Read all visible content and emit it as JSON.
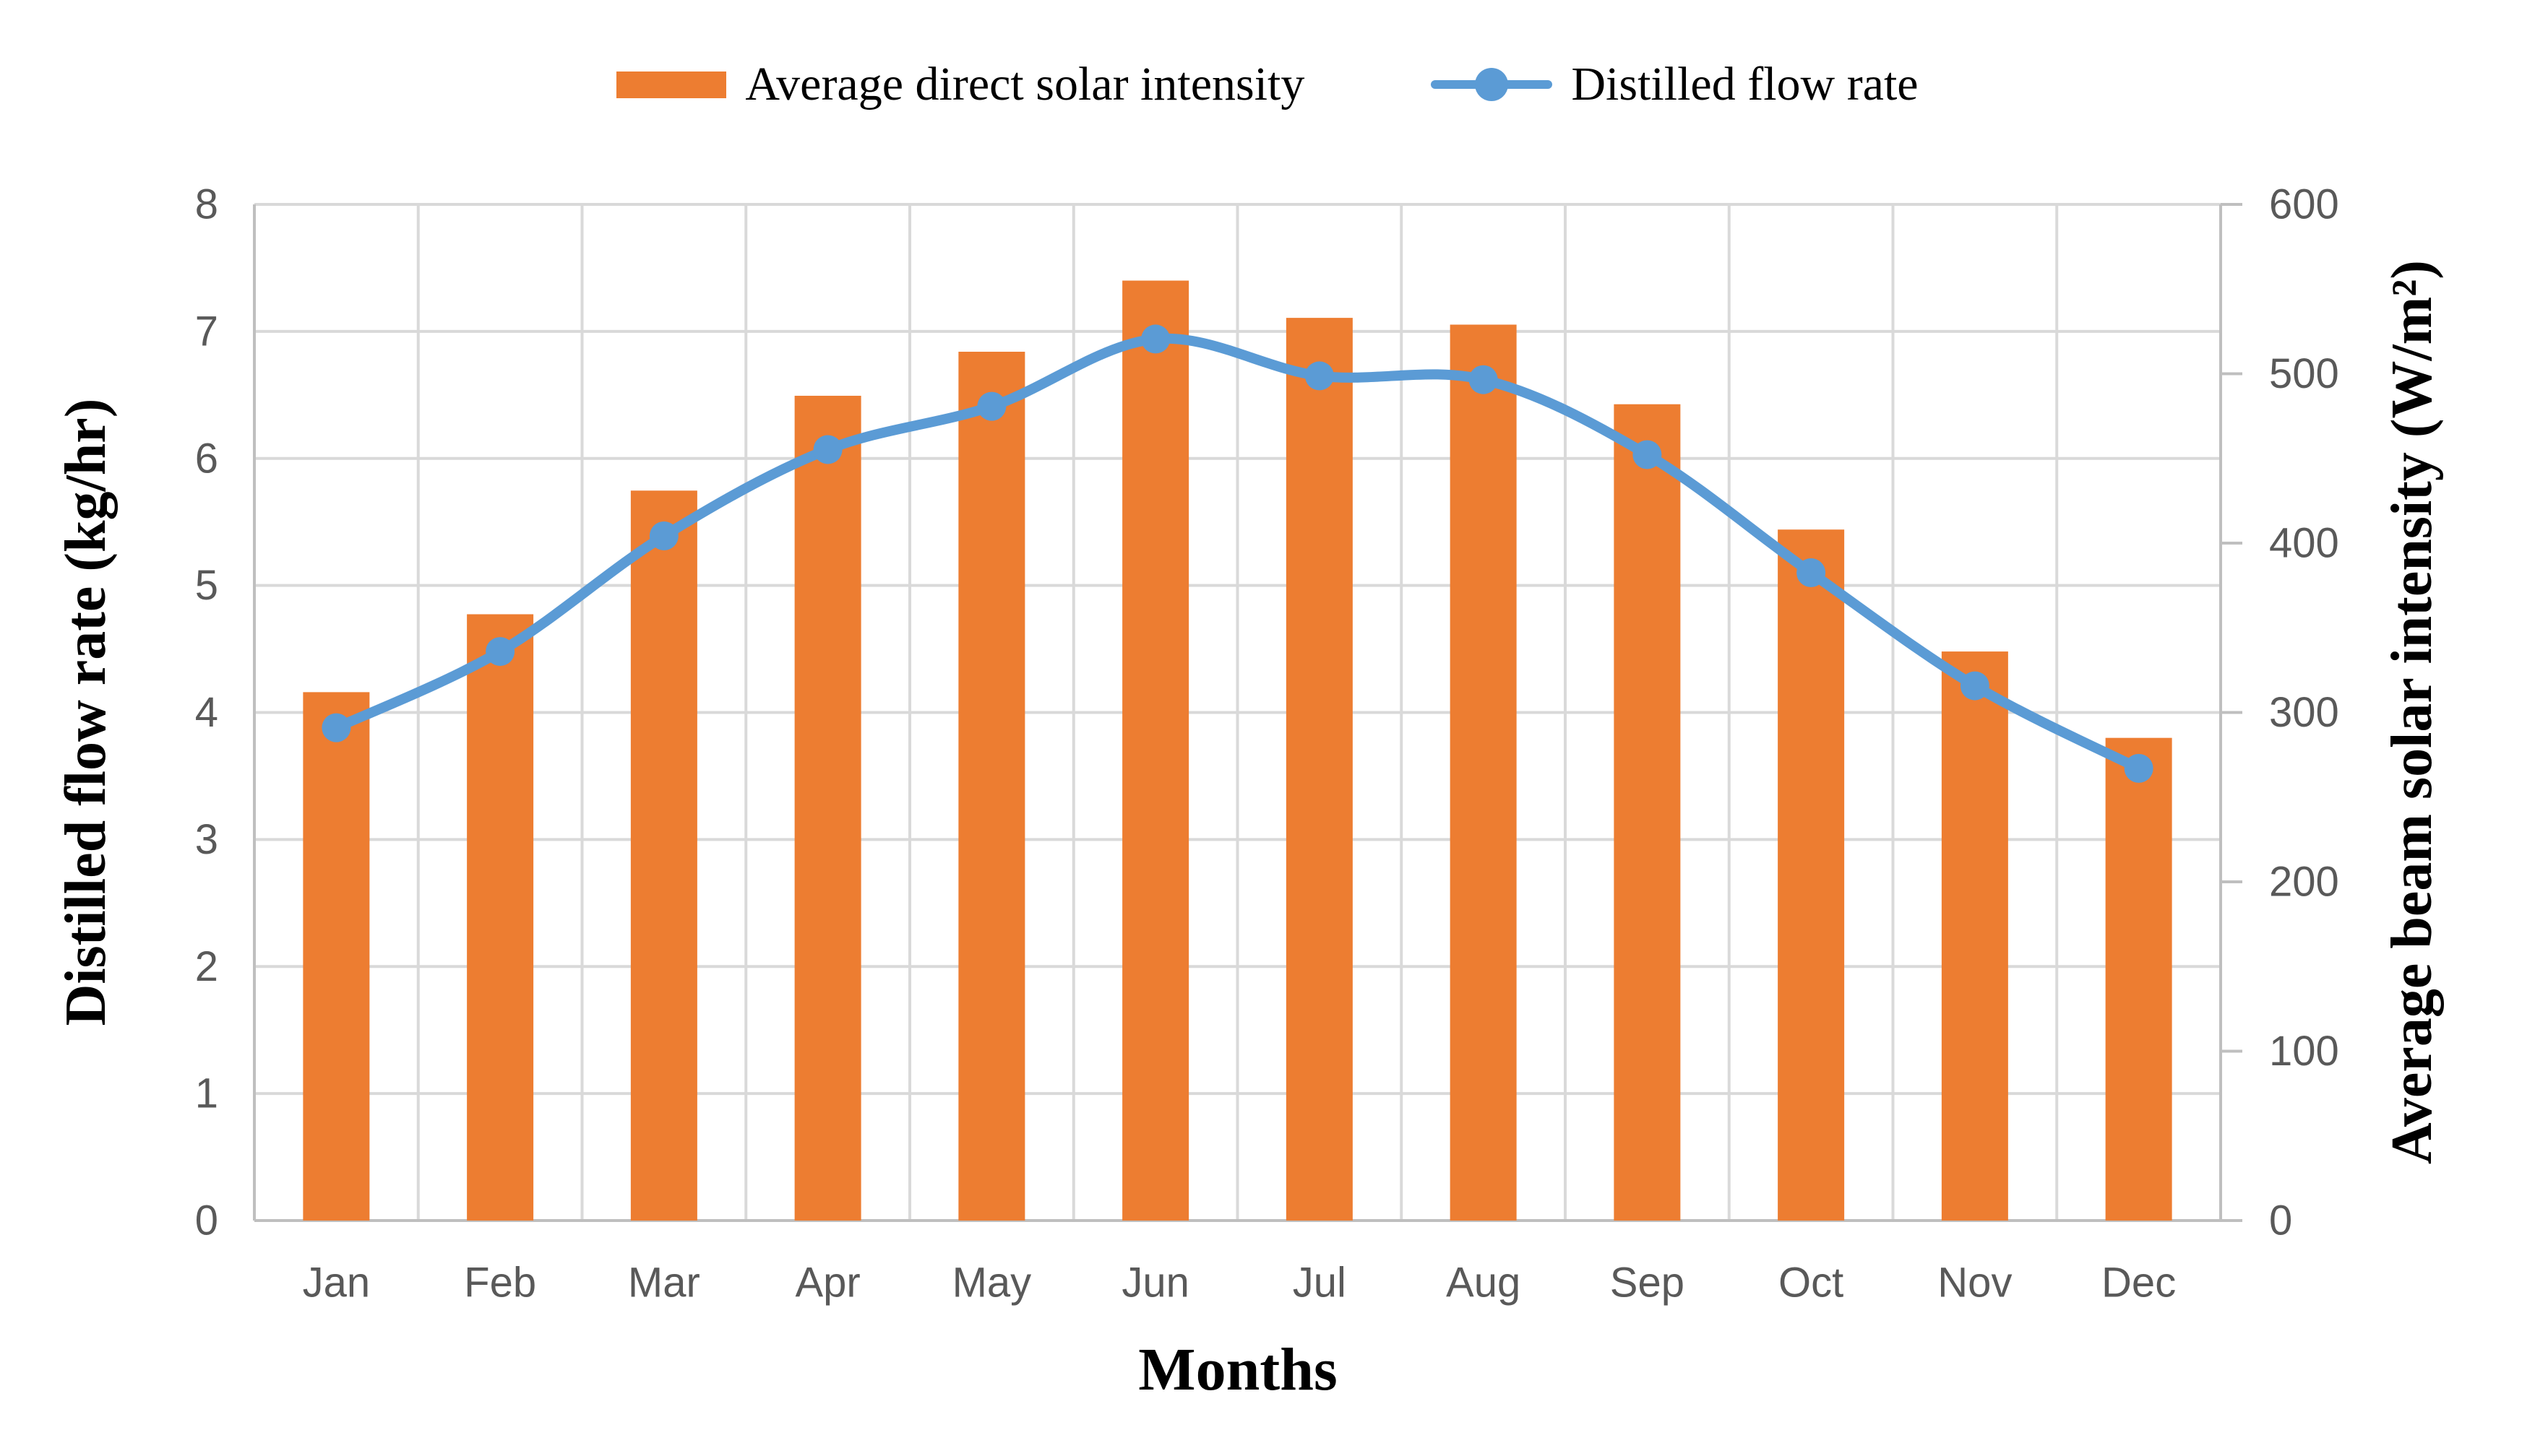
{
  "legend": {
    "items": [
      {
        "label": "Average direct solar intensity",
        "series": "bar"
      },
      {
        "label": "Distilled flow rate",
        "series": "line"
      }
    ]
  },
  "titles": {
    "left_axis": "Distilled flow rate (kg/hr)",
    "right_axis": "Average beam solar intensity (W/m²)",
    "x_axis": "Months"
  },
  "colors": {
    "bar": "#ED7D31",
    "line": "#5B9BD5",
    "gridline": "#D9D9D9",
    "axis_line": "#BFBFBF",
    "tick_label": "#595959",
    "title_text": "#000000",
    "background": "#FFFFFF"
  },
  "chart_data": {
    "type": "bar+line combo",
    "title": "",
    "categories": [
      "Jan",
      "Feb",
      "Mar",
      "Apr",
      "May",
      "Jun",
      "Jul",
      "Aug",
      "Sep",
      "Oct",
      "Nov",
      "Dec"
    ],
    "series": [
      {
        "name": "Average direct solar intensity",
        "type": "bar",
        "axis": "right",
        "color": "#ED7D31",
        "values": [
          312,
          358,
          431,
          487,
          513,
          555,
          533,
          529,
          482,
          408,
          336,
          285
        ]
      },
      {
        "name": "Distilled flow rate",
        "type": "line",
        "axis": "left",
        "color": "#5B9BD5",
        "marker": "circle",
        "smooth": true,
        "values": [
          3.88,
          4.48,
          5.39,
          6.07,
          6.41,
          6.94,
          6.65,
          6.62,
          6.03,
          5.1,
          4.21,
          3.56
        ]
      }
    ],
    "axis_left": {
      "title": "Distilled flow rate (kg/hr)",
      "min": 0,
      "max": 8,
      "ticks": [
        0,
        1,
        2,
        3,
        4,
        5,
        6,
        7,
        8
      ]
    },
    "axis_right": {
      "title": "Average beam solar intensity (W/m²)",
      "min": 0,
      "max": 600,
      "ticks": [
        0,
        100,
        200,
        300,
        400,
        500,
        600
      ]
    },
    "x_axis": {
      "title": "Months"
    },
    "legend_position": "top",
    "grid": {
      "horizontal": true,
      "vertical": true
    }
  }
}
